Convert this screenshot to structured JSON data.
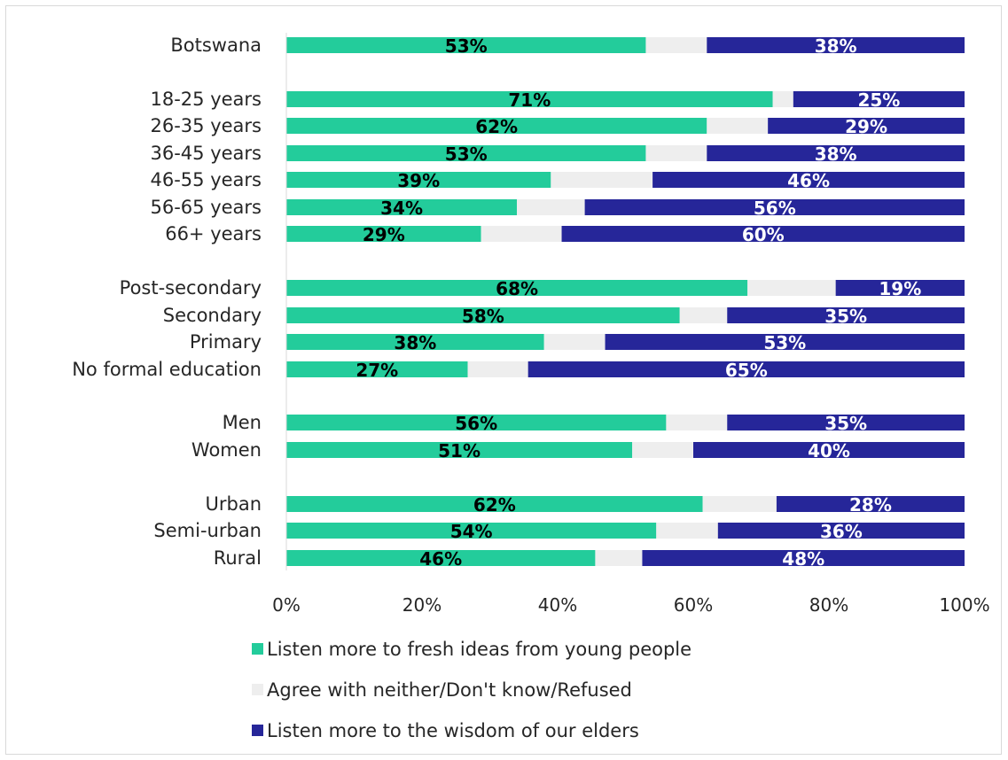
{
  "chart_data": {
    "type": "bar",
    "orientation": "horizontal",
    "stacked": true,
    "categories": [
      "Botswana",
      "18-25 years",
      "26-35 years",
      "36-45 years",
      "46-55 years",
      "56-65 years",
      "66+ years",
      "Post-secondary",
      "Secondary",
      "Primary",
      "No formal education",
      "Men",
      "Women",
      "Urban",
      "Semi-urban",
      "Rural"
    ],
    "series": [
      {
        "name": "Listen more to fresh ideas from young people",
        "color": "#23cc9b",
        "label_color": "#000000",
        "values": [
          53,
          71,
          62,
          53,
          39,
          34,
          29,
          68,
          58,
          38,
          27,
          56,
          51,
          62,
          54,
          46
        ],
        "labels": [
          "53%",
          "71%",
          "62%",
          "53%",
          "39%",
          "34%",
          "29%",
          "68%",
          "58%",
          "38%",
          "27%",
          "56%",
          "51%",
          "62%",
          "54%",
          "46%"
        ]
      },
      {
        "name": "Agree with neither/Don't know/Refused",
        "color": "#eeeeee",
        "label_color": "#000000",
        "values": [
          9,
          3,
          9,
          9,
          15,
          10,
          12,
          13,
          7,
          9,
          9,
          9,
          9,
          11,
          9,
          7
        ],
        "labels": []
      },
      {
        "name": "Listen more to the wisdom of our elders",
        "color": "#262699",
        "label_color": "#ffffff",
        "values": [
          38,
          25,
          29,
          38,
          46,
          56,
          60,
          19,
          35,
          53,
          65,
          35,
          40,
          28,
          36,
          48
        ],
        "labels": [
          "38%",
          "25%",
          "29%",
          "38%",
          "46%",
          "56%",
          "60%",
          "19%",
          "35%",
          "53%",
          "65%",
          "35%",
          "40%",
          "28%",
          "36%",
          "48%"
        ]
      }
    ],
    "x_ticks": [
      "0%",
      "20%",
      "40%",
      "60%",
      "80%",
      "100%"
    ],
    "xlim": [
      0,
      100
    ],
    "grid": false,
    "legend_position": "bottom",
    "title": "",
    "xlabel": "",
    "ylabel": ""
  }
}
